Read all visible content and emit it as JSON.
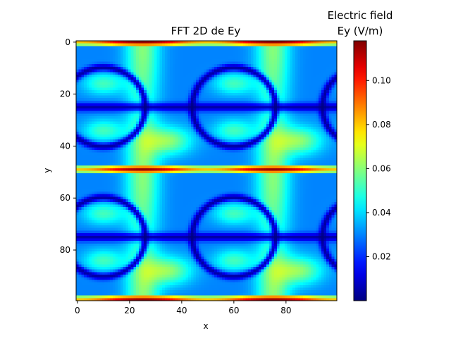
{
  "chart_data": {
    "type": "heatmap",
    "title": "FFT 2D de Ey",
    "xlabel": "x",
    "ylabel": "y",
    "xlim": [
      0,
      99
    ],
    "ylim": [
      99,
      0
    ],
    "x_ticks": [
      0,
      20,
      40,
      60,
      80
    ],
    "y_ticks": [
      0,
      20,
      40,
      60,
      80
    ],
    "grid_size": [
      100,
      100
    ],
    "colormap": "jet",
    "colorbar": {
      "label_line1": "Electric field",
      "label_line2": "Ey (V/m)",
      "min": 0.0,
      "max": 0.118,
      "ticks": [
        0.02,
        0.04,
        0.06,
        0.08,
        0.1
      ],
      "tick_labels": [
        "0.02",
        "0.04",
        "0.06",
        "0.08",
        "0.10"
      ]
    },
    "pattern": {
      "horizontal_band_rows": [
        0,
        49,
        99
      ],
      "band_peak_value": 0.115,
      "dark_line_rows": [
        25,
        75
      ],
      "bright_columns": [
        25,
        75
      ],
      "ring_centers": [
        {
          "x": 10,
          "y": 25
        },
        {
          "x": 60,
          "y": 25
        },
        {
          "x": 110,
          "y": 25
        },
        {
          "x": 10,
          "y": 75
        },
        {
          "x": 60,
          "y": 75
        },
        {
          "x": 110,
          "y": 75
        }
      ],
      "ring_radius": 16,
      "lobe_value": 0.048,
      "background_value": 0.03
    }
  }
}
